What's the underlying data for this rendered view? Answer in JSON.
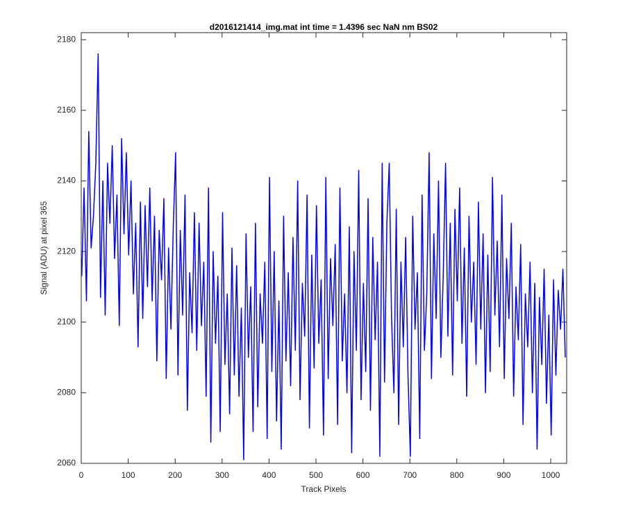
{
  "chart_data": {
    "type": "line",
    "title": "d2016121414_img.mat int time = 1.4396 sec  NaN nm BS02",
    "x_label": "Track Pixels",
    "y_label": "Signal (ADU) at pixel 365",
    "xlim": [
      0,
      1034
    ],
    "ylim": [
      2060,
      2182
    ],
    "xticks": [
      0,
      100,
      200,
      300,
      400,
      500,
      600,
      700,
      800,
      900,
      1000
    ],
    "yticks": [
      2060,
      2080,
      2100,
      2120,
      2140,
      2160,
      2180
    ],
    "grid": false,
    "series": [
      {
        "color": "#0000ff",
        "x": [
          1,
          6,
          11,
          16,
          21,
          26,
          31,
          36,
          41,
          46,
          51,
          56,
          61,
          66,
          71,
          76,
          81,
          86,
          91,
          96,
          101,
          106,
          111,
          116,
          121,
          126,
          131,
          136,
          141,
          146,
          151,
          156,
          161,
          166,
          171,
          176,
          181,
          186,
          191,
          196,
          201,
          206,
          211,
          216,
          221,
          226,
          231,
          236,
          241,
          246,
          251,
          256,
          261,
          266,
          271,
          276,
          281,
          286,
          291,
          296,
          301,
          306,
          311,
          316,
          321,
          326,
          331,
          336,
          341,
          346,
          351,
          356,
          361,
          366,
          371,
          376,
          381,
          386,
          391,
          396,
          401,
          406,
          411,
          416,
          421,
          426,
          431,
          436,
          441,
          446,
          451,
          456,
          461,
          466,
          471,
          476,
          481,
          486,
          491,
          496,
          501,
          506,
          511,
          516,
          521,
          526,
          531,
          536,
          541,
          546,
          551,
          556,
          561,
          566,
          571,
          576,
          581,
          586,
          591,
          596,
          601,
          606,
          611,
          616,
          621,
          626,
          631,
          636,
          641,
          646,
          651,
          656,
          661,
          666,
          671,
          676,
          681,
          686,
          691,
          696,
          701,
          706,
          711,
          716,
          721,
          726,
          731,
          736,
          741,
          746,
          751,
          756,
          761,
          766,
          771,
          776,
          781,
          786,
          791,
          796,
          801,
          806,
          811,
          816,
          821,
          826,
          831,
          836,
          841,
          846,
          851,
          856,
          861,
          866,
          871,
          876,
          881,
          886,
          891,
          896,
          901,
          906,
          911,
          916,
          921,
          926,
          931,
          936,
          941,
          946,
          951,
          956,
          961,
          966,
          971,
          976,
          981,
          986,
          991,
          996,
          1001,
          1006,
          1011,
          1016,
          1021,
          1026,
          1031
        ],
        "values": [
          2113,
          2138,
          2106,
          2154,
          2121,
          2130,
          2145,
          2176,
          2107,
          2140,
          2102,
          2145,
          2128,
          2150,
          2118,
          2136,
          2099,
          2152,
          2125,
          2148,
          2119,
          2140,
          2108,
          2128,
          2093,
          2134,
          2101,
          2133,
          2110,
          2138,
          2106,
          2130,
          2089,
          2126,
          2112,
          2135,
          2084,
          2121,
          2098,
          2127,
          2148,
          2085,
          2126,
          2102,
          2136,
          2075,
          2114,
          2097,
          2131,
          2092,
          2128,
          2099,
          2117,
          2079,
          2138,
          2066,
          2120,
          2094,
          2113,
          2069,
          2131,
          2088,
          2108,
          2074,
          2121,
          2085,
          2116,
          2079,
          2104,
          2061,
          2125,
          2090,
          2110,
          2069,
          2128,
          2076,
          2108,
          2094,
          2117,
          2067,
          2141,
          2086,
          2120,
          2072,
          2106,
          2064,
          2130,
          2089,
          2114,
          2082,
          2124,
          2092,
          2140,
          2078,
          2111,
          2096,
          2136,
          2070,
          2119,
          2087,
          2133,
          2094,
          2112,
          2068,
          2141,
          2084,
          2118,
          2099,
          2122,
          2071,
          2138,
          2089,
          2108,
          2080,
          2127,
          2063,
          2120,
          2092,
          2143,
          2078,
          2111,
          2086,
          2135,
          2075,
          2124,
          2095,
          2117,
          2062,
          2145,
          2083,
          2128,
          2145,
          2101,
          2080,
          2132,
          2071,
          2117,
          2093,
          2124,
          2085,
          2062,
          2130,
          2098,
          2114,
          2067,
          2136,
          2092,
          2108,
          2148,
          2084,
          2125,
          2101,
          2140,
          2090,
          2113,
          2145,
          2096,
          2128,
          2085,
          2132,
          2106,
          2138,
          2094,
          2121,
          2079,
          2130,
          2100,
          2117,
          2088,
          2134,
          2098,
          2125,
          2080,
          2119,
          2086,
          2141,
          2102,
          2123,
          2093,
          2136,
          2084,
          2118,
          2101,
          2128,
          2079,
          2110,
          2095,
          2122,
          2071,
          2108,
          2093,
          2117,
          2080,
          2111,
          2064,
          2107,
          2088,
          2115,
          2077,
          2102,
          2068,
          2112,
          2085,
          2109,
          2098,
          2115,
          2090
        ]
      }
    ]
  }
}
